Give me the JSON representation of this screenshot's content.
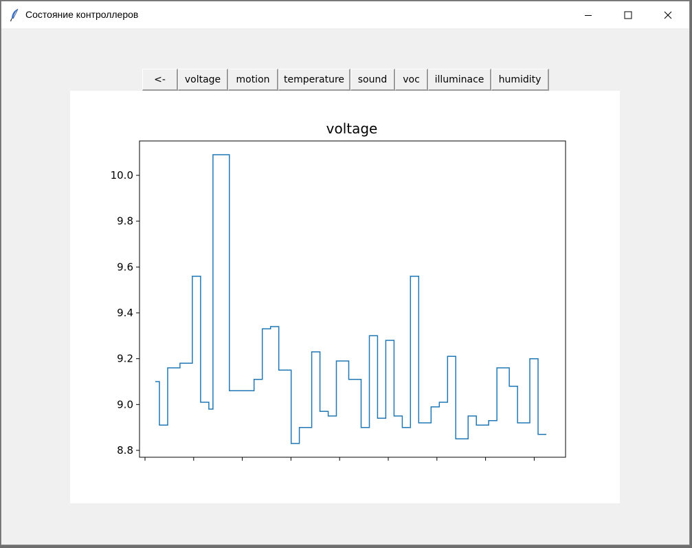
{
  "window": {
    "title": "Состояние контроллеров",
    "app_icon": "feather-icon",
    "controls": [
      "minimize-icon",
      "maximize-icon",
      "close-icon"
    ]
  },
  "toolbar": {
    "buttons": [
      {
        "id": "back",
        "label": "<-"
      },
      {
        "id": "voltage",
        "label": "voltage"
      },
      {
        "id": "motion",
        "label": "motion"
      },
      {
        "id": "temperature",
        "label": "temperature"
      },
      {
        "id": "sound",
        "label": "sound"
      },
      {
        "id": "voc",
        "label": "voc"
      },
      {
        "id": "illuminace",
        "label": "illuminace"
      },
      {
        "id": "humidity",
        "label": "humidity"
      }
    ]
  },
  "chart_data": {
    "type": "line",
    "line_style": "steps",
    "title": "voltage",
    "xlabel": "",
    "ylabel": "",
    "ylim": [
      8.77,
      10.15
    ],
    "yticks": [
      "8.8",
      "9.0",
      "9.2",
      "9.4",
      "9.6",
      "9.8",
      "10.0"
    ],
    "xtick_count": 9,
    "xtick_labels_visible": false,
    "grid": false,
    "legend": "none",
    "color": "#1f77b4",
    "values": [
      9.1,
      9.1,
      8.91,
      8.91,
      9.16,
      9.16,
      9.16,
      9.18,
      9.18,
      9.18,
      9.56,
      9.56,
      9.01,
      9.01,
      8.98,
      10.09,
      10.09,
      10.09,
      10.09,
      9.06,
      9.06,
      9.06,
      9.06,
      9.06,
      9.06,
      9.11,
      9.11,
      9.33,
      9.33,
      9.34,
      9.34,
      9.15,
      9.15,
      9.15,
      8.83,
      8.83,
      8.9,
      8.9,
      8.9,
      9.23,
      9.23,
      8.97,
      8.97,
      8.95,
      8.95,
      9.19,
      9.19,
      9.19,
      9.11,
      9.11,
      9.11,
      8.9,
      8.9,
      9.3,
      9.3,
      8.94,
      8.94,
      9.28,
      9.28,
      8.95,
      8.95,
      8.9,
      8.9,
      9.56,
      9.56,
      8.92,
      8.92,
      8.92,
      8.99,
      8.99,
      9.01,
      9.01,
      9.21,
      9.21,
      8.85,
      8.85,
      8.85,
      8.95,
      8.95,
      8.91,
      8.91,
      8.91,
      8.93,
      8.93,
      9.16,
      9.16,
      9.16,
      9.08,
      9.08,
      8.92,
      8.92,
      8.92,
      9.2,
      9.2,
      8.87,
      8.87
    ]
  }
}
